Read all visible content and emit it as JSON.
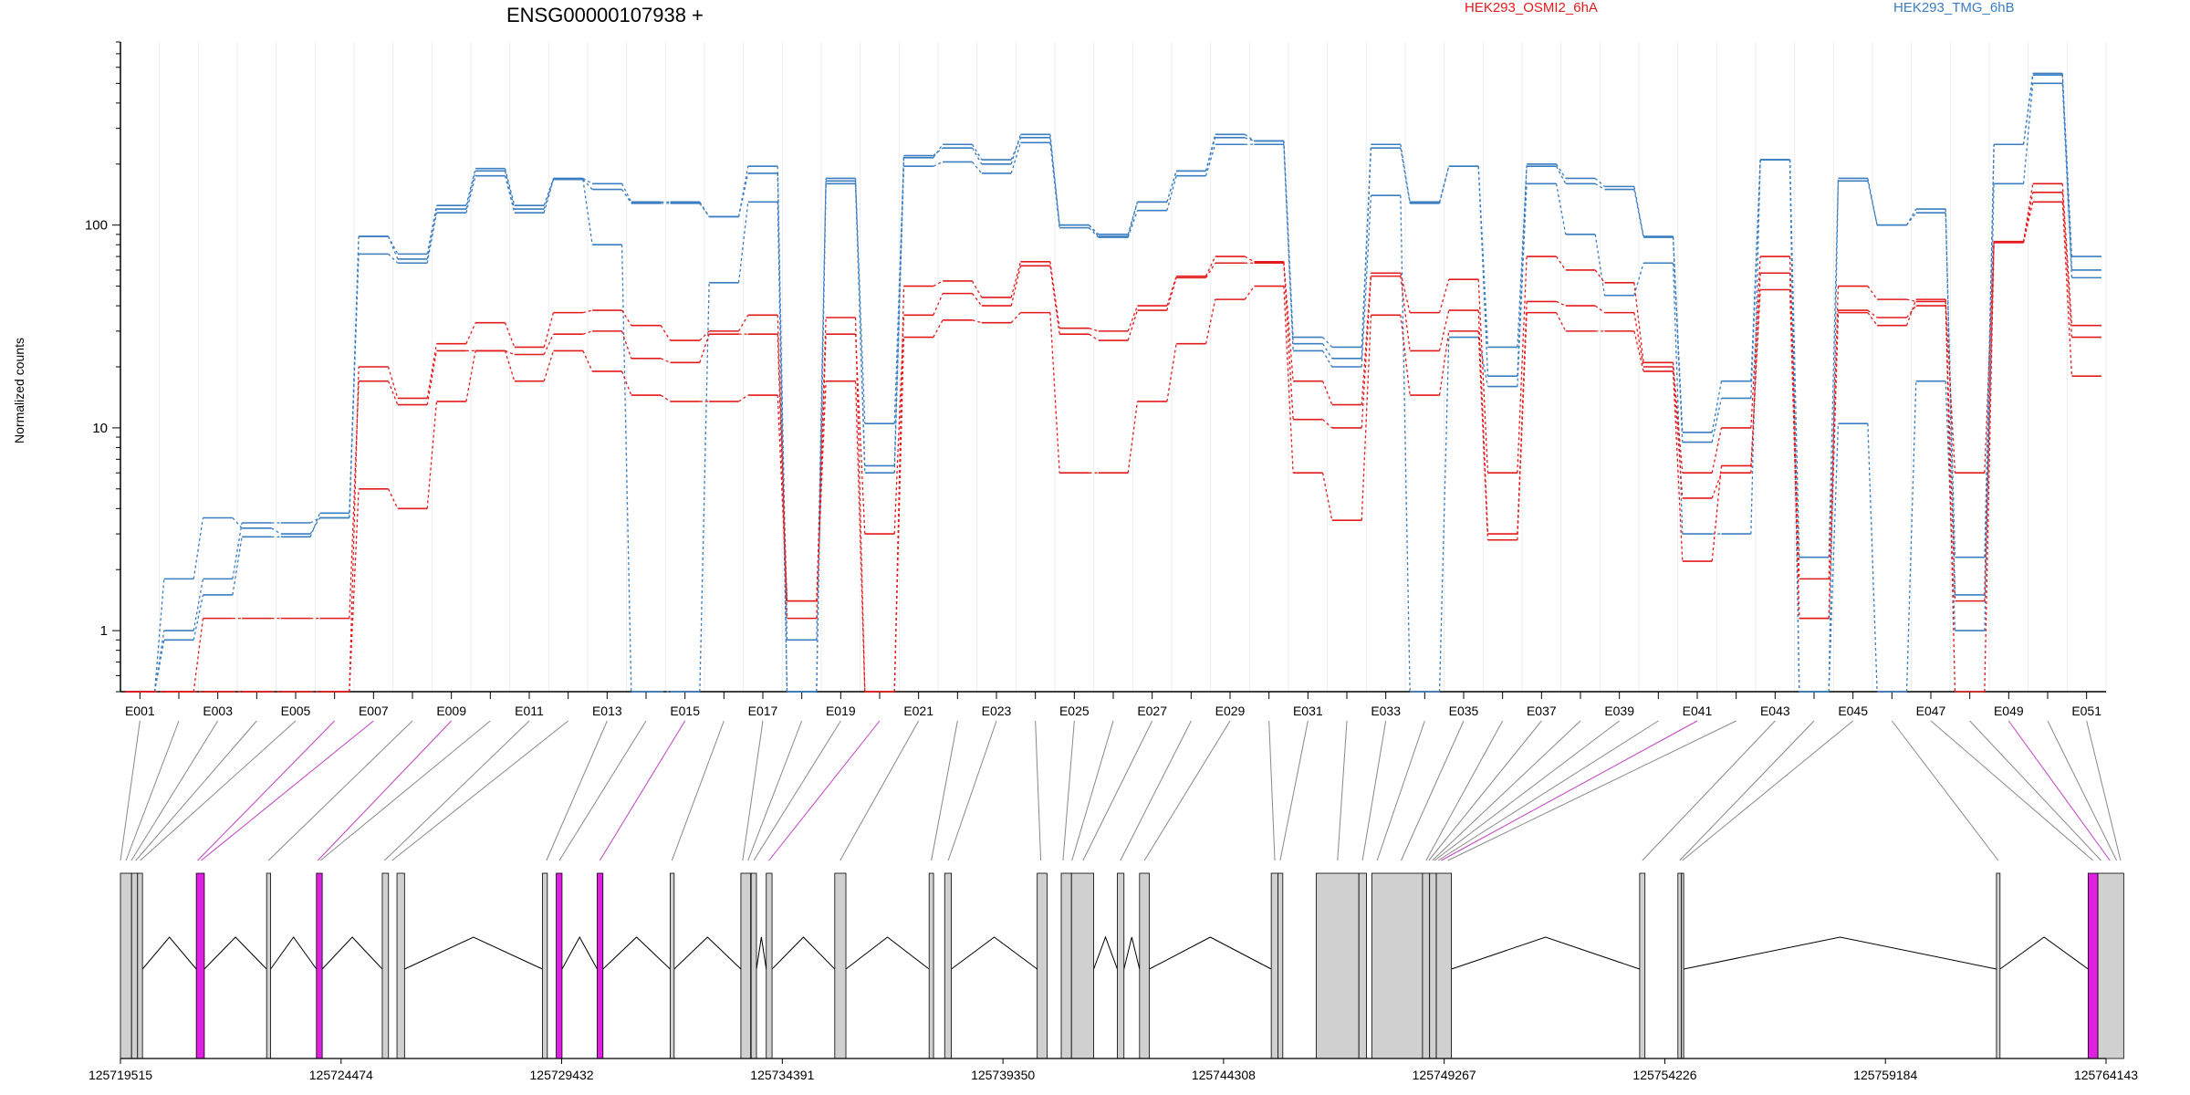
{
  "chart_data": {
    "type": "line",
    "title": "ENSG00000107938 +",
    "ylabel": "Normalized counts",
    "yscale": "log",
    "yticks": [
      "1",
      "10",
      "100"
    ],
    "ylim": [
      0.5,
      800
    ],
    "grid": true,
    "legend": {
      "placement": "top",
      "entries": [
        "HEK293_OSMI2_6hA",
        "HEK293_TMG_6hB"
      ]
    },
    "colors": {
      "HEK293_OSMI2_6hA": "#e31a1c",
      "HEK293_TMG_6hB": "#3a7dc0",
      "highlight_exon": "#e020e0",
      "exon": "#d0d0d0"
    },
    "x_tick_labels": [
      "E001",
      "E003",
      "E005",
      "E007",
      "E009",
      "E011",
      "E013",
      "E015",
      "E017",
      "E019",
      "E021",
      "E023",
      "E025",
      "E027",
      "E029",
      "E031",
      "E033",
      "E035",
      "E037",
      "E039",
      "E041",
      "E043",
      "E045",
      "E047",
      "E049",
      "E051"
    ],
    "exons": [
      "E001",
      "E002",
      "E003",
      "E004",
      "E005",
      "E006",
      "E007",
      "E008",
      "E009",
      "E010",
      "E011",
      "E012",
      "E013",
      "E014",
      "E015",
      "E016",
      "E017",
      "E018",
      "E019",
      "E020",
      "E021",
      "E022",
      "E023",
      "E024",
      "E025",
      "E026",
      "E027",
      "E028",
      "E029",
      "E030",
      "E031",
      "E032",
      "E033",
      "E034",
      "E035",
      "E036",
      "E037",
      "E038",
      "E039",
      "E040",
      "E041",
      "E042",
      "E043",
      "E044",
      "E045",
      "E046",
      "E047",
      "E048",
      "E049",
      "E050",
      "E051"
    ],
    "series": [
      {
        "name": "HEK293_TMG_6hB",
        "values": [
          0.5,
          1.0,
          1.8,
          3.4,
          3.4,
          3.6,
          88,
          72,
          125,
          190,
          125,
          170,
          160,
          130,
          130,
          110,
          195,
          0.9,
          170,
          6.5,
          220,
          240,
          200,
          280,
          100,
          88,
          130,
          185,
          270,
          260,
          28,
          25,
          250,
          130,
          195,
          18,
          200,
          170,
          155,
          88,
          9.5,
          17,
          210,
          0.5,
          170,
          100,
          120,
          1.5,
          250,
          560,
          70
        ]
      },
      {
        "name": "HEK293_TMG_6hB",
        "values": [
          0.5,
          1.8,
          3.6,
          3.2,
          3.0,
          3.6,
          88,
          68,
          120,
          185,
          120,
          168,
          150,
          128,
          128,
          110,
          180,
          0.5,
          165,
          10.5,
          215,
          250,
          210,
          270,
          100,
          90,
          130,
          185,
          280,
          260,
          26,
          22,
          240,
          128,
          195,
          25,
          195,
          160,
          150,
          87,
          8.5,
          14,
          210,
          2.3,
          165,
          100,
          115,
          2.3,
          250,
          550,
          60
        ]
      },
      {
        "name": "HEK293_TMG_6hB",
        "values": [
          0.5,
          0.9,
          1.5,
          2.9,
          2.9,
          3.8,
          72,
          65,
          115,
          175,
          115,
          168,
          80,
          0.5,
          0.5,
          52,
          130,
          0.5,
          160,
          6.0,
          195,
          205,
          180,
          255,
          97,
          87,
          118,
          175,
          250,
          250,
          24,
          20,
          140,
          0.5,
          28,
          16,
          160,
          90,
          45,
          65,
          3.0,
          3.0,
          210,
          0.5,
          10.5,
          0.5,
          17,
          1.0,
          160,
          500,
          55
        ]
      },
      {
        "name": "HEK293_OSMI2_6hA",
        "values": [
          0.5,
          0.5,
          0.5,
          0.5,
          0.5,
          0.5,
          20,
          14,
          26,
          33,
          25,
          37,
          38,
          32,
          27,
          30,
          36,
          1.4,
          35,
          0.5,
          50,
          53,
          44,
          66,
          31,
          30,
          40,
          56,
          70,
          66,
          17,
          13,
          58,
          37,
          54,
          6.0,
          70,
          60,
          52,
          21,
          6.0,
          10,
          70,
          1.8,
          50,
          43,
          42,
          6.0,
          83,
          160,
          32
        ]
      },
      {
        "name": "HEK293_OSMI2_6hA",
        "values": [
          0.5,
          0.5,
          1.15,
          1.15,
          1.15,
          1.15,
          17,
          13,
          24,
          24,
          23,
          29,
          30,
          22,
          21,
          29,
          29,
          1.15,
          29,
          3.0,
          36,
          46,
          40,
          63,
          29,
          27,
          38,
          55,
          65,
          65,
          11,
          10,
          56,
          24,
          38,
          3.0,
          42,
          40,
          37,
          20,
          4.5,
          6.0,
          58,
          1.15,
          38,
          35,
          40,
          1.4,
          82,
          145,
          28
        ]
      },
      {
        "name": "HEK293_OSMI2_6hA",
        "values": [
          0.5,
          0.5,
          0.5,
          0.5,
          0.5,
          0.5,
          5.0,
          4.0,
          13.5,
          24,
          17,
          24,
          19,
          14.5,
          13.5,
          13.5,
          14.5,
          1.4,
          17,
          0.5,
          28,
          34,
          33,
          37,
          6.0,
          6.0,
          13.5,
          26,
          43,
          50,
          6.0,
          3.5,
          36,
          14.5,
          30,
          2.8,
          37,
          30,
          30,
          19,
          2.2,
          6.5,
          48,
          1.15,
          37,
          32,
          43,
          0.5,
          82,
          130,
          18
        ]
      }
    ],
    "genomic_axis": {
      "tick_labels": [
        "125719515",
        "125724474",
        "125729432",
        "125734391",
        "125739350",
        "125744308",
        "125749267",
        "125754226",
        "125759184",
        "125764143"
      ],
      "start": 125719515,
      "end": 125764143
    },
    "gene_model": {
      "exon_blocks": [
        {
          "start": 125719515,
          "end": 125719765,
          "highlight": false
        },
        {
          "start": 125719765,
          "end": 125719900,
          "highlight": false
        },
        {
          "start": 125719900,
          "end": 125720010,
          "highlight": false
        },
        {
          "start": 125721220,
          "end": 125721400,
          "highlight": true
        },
        {
          "start": 125722800,
          "end": 125722890,
          "highlight": false
        },
        {
          "start": 125723920,
          "end": 125724050,
          "highlight": true
        },
        {
          "start": 125725400,
          "end": 125725540,
          "highlight": false
        },
        {
          "start": 125725730,
          "end": 125725900,
          "highlight": false
        },
        {
          "start": 125729000,
          "end": 125729110,
          "highlight": false
        },
        {
          "start": 125729310,
          "end": 125729440,
          "highlight": true
        },
        {
          "start": 125730230,
          "end": 125730360,
          "highlight": true
        },
        {
          "start": 125731870,
          "end": 125731960,
          "highlight": false
        },
        {
          "start": 125733460,
          "end": 125733680,
          "highlight": false
        },
        {
          "start": 125733690,
          "end": 125733810,
          "highlight": false
        },
        {
          "start": 125734030,
          "end": 125734160,
          "highlight": false
        },
        {
          "start": 125735570,
          "end": 125735820,
          "highlight": false
        },
        {
          "start": 125737690,
          "end": 125737790,
          "highlight": false
        },
        {
          "start": 125738040,
          "end": 125738190,
          "highlight": false
        },
        {
          "start": 125740120,
          "end": 125740340,
          "highlight": false
        },
        {
          "start": 125740660,
          "end": 125740890,
          "highlight": false
        },
        {
          "start": 125740890,
          "end": 125741390,
          "highlight": false
        },
        {
          "start": 125741920,
          "end": 125742070,
          "highlight": false
        },
        {
          "start": 125742420,
          "end": 125742640,
          "highlight": false
        },
        {
          "start": 125745380,
          "end": 125745530,
          "highlight": false
        },
        {
          "start": 125745530,
          "end": 125745640,
          "highlight": false
        },
        {
          "start": 125746390,
          "end": 125747350,
          "highlight": false
        },
        {
          "start": 125747350,
          "end": 125747520,
          "highlight": false
        },
        {
          "start": 125747640,
          "end": 125748780,
          "highlight": false
        },
        {
          "start": 125748780,
          "end": 125748940,
          "highlight": false
        },
        {
          "start": 125748940,
          "end": 125749090,
          "highlight": false
        },
        {
          "start": 125749090,
          "end": 125749430,
          "highlight": false
        },
        {
          "start": 125753660,
          "end": 125753780,
          "highlight": false
        },
        {
          "start": 125754520,
          "end": 125754600,
          "highlight": false
        },
        {
          "start": 125754600,
          "end": 125754650,
          "highlight": false
        },
        {
          "start": 125761680,
          "end": 125761760,
          "highlight": false
        },
        {
          "start": 125763740,
          "end": 125763960,
          "highlight": true
        },
        {
          "start": 125763960,
          "end": 125764540,
          "highlight": false
        }
      ],
      "exon_anchor_coords": [
        125719515,
        125719640,
        125719760,
        125719860,
        125719960,
        125721250,
        125721330,
        125722840,
        125723950,
        125724010,
        125725450,
        125725620,
        125729090,
        125729380,
        125730290,
        125731910,
        125733500,
        125733620,
        125733750,
        125734090,
        125735690,
        125737740,
        125738120,
        125740200,
        125740700,
        125740900,
        125741150,
        125741990,
        125742530,
        125745460,
        125745580,
        125746870,
        125747430,
        125747760,
        125748300,
        125748860,
        125748920,
        125749000,
        125749050,
        125749130,
        125749200,
        125749350,
        125753720,
        125754560,
        125754620,
        125761720,
        125763850,
        125764030,
        125764230,
        125764380,
        125764470
      ],
      "introns": [
        {
          "from": 125720010,
          "to": 125721220
        },
        {
          "from": 125721400,
          "to": 125722800
        },
        {
          "from": 125722890,
          "to": 125723920
        },
        {
          "from": 125724050,
          "to": 125725400
        },
        {
          "from": 125725900,
          "to": 125729000
        },
        {
          "from": 125729440,
          "to": 125730230
        },
        {
          "from": 125730360,
          "to": 125731870
        },
        {
          "from": 125731960,
          "to": 125733460
        },
        {
          "from": 125733810,
          "to": 125734030
        },
        {
          "from": 125734160,
          "to": 125735570
        },
        {
          "from": 125735820,
          "to": 125737690
        },
        {
          "from": 125738190,
          "to": 125740120
        },
        {
          "from": 125741390,
          "to": 125741920
        },
        {
          "from": 125742070,
          "to": 125742420
        },
        {
          "from": 125742640,
          "to": 125745380
        },
        {
          "from": 125749430,
          "to": 125753660
        },
        {
          "from": 125754650,
          "to": 125761680
        },
        {
          "from": 125761760,
          "to": 125763740
        }
      ]
    }
  }
}
